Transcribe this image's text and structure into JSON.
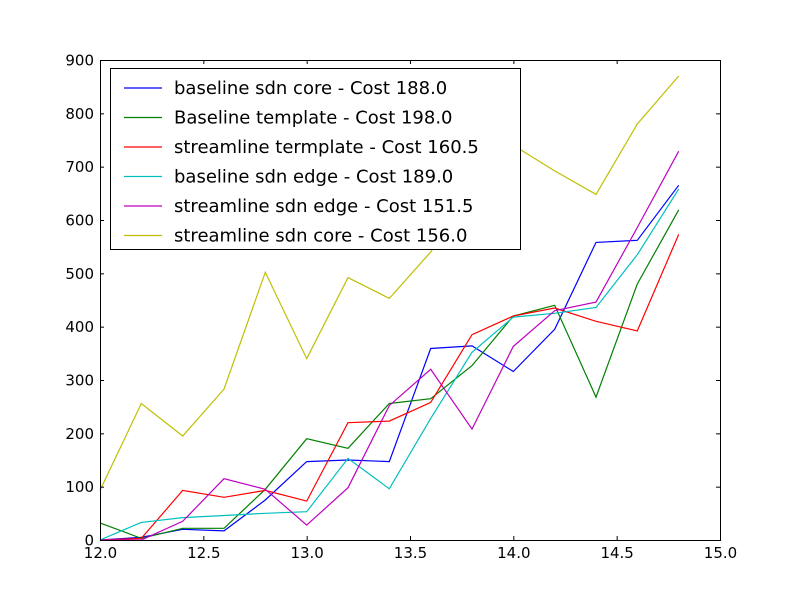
{
  "chart_data": {
    "type": "line",
    "title": "",
    "xlabel": "",
    "ylabel": "",
    "xlim": [
      12.0,
      15.0
    ],
    "ylim": [
      0,
      900
    ],
    "xticks": [
      "12.0",
      "12.5",
      "13.0",
      "13.5",
      "14.0",
      "14.5",
      "15.0"
    ],
    "yticks": [
      "0",
      "100",
      "200",
      "300",
      "400",
      "500",
      "600",
      "700",
      "800",
      "900"
    ],
    "grid": false,
    "legend_position": "top-left",
    "x": [
      12.0,
      12.2,
      12.4,
      12.6,
      12.8,
      13.0,
      13.2,
      13.4,
      13.6,
      13.8,
      14.0,
      14.2,
      14.4,
      14.6,
      14.8
    ],
    "series": [
      {
        "name": "baseline sdn core - Cost 188.0",
        "color": "#0000ff",
        "values": [
          0,
          5,
          20,
          17,
          75,
          147,
          150,
          147,
          359,
          364,
          316,
          395,
          558,
          562,
          665
        ]
      },
      {
        "name": "Baseline template - Cost 198.0",
        "color": "#008000",
        "values": [
          32,
          3,
          22,
          22,
          95,
          190,
          172,
          256,
          265,
          327,
          420,
          440,
          268,
          480,
          619
        ]
      },
      {
        "name": "streamline termplate - Cost 160.5",
        "color": "#ff0000",
        "values": [
          0,
          3,
          93,
          80,
          93,
          73,
          220,
          223,
          258,
          385,
          420,
          435,
          410,
          392,
          573
        ]
      },
      {
        "name": "baseline sdn edge - Cost 189.0",
        "color": "#00bfbf",
        "values": [
          0,
          33,
          42,
          46,
          50,
          53,
          153,
          96,
          228,
          352,
          418,
          425,
          436,
          535,
          658
        ]
      },
      {
        "name": "streamline sdn edge - Cost 151.5",
        "color": "#bf00bf",
        "values": [
          0,
          0,
          35,
          115,
          95,
          28,
          98,
          252,
          320,
          208,
          363,
          430,
          446,
          586,
          729
        ]
      },
      {
        "name": "streamline sdn core - Cost 156.0",
        "color": "#bfbf00",
        "values": [
          93,
          256,
          195,
          283,
          502,
          340,
          492,
          453,
          540,
          660,
          740,
          692,
          648,
          780,
          870
        ]
      }
    ]
  }
}
